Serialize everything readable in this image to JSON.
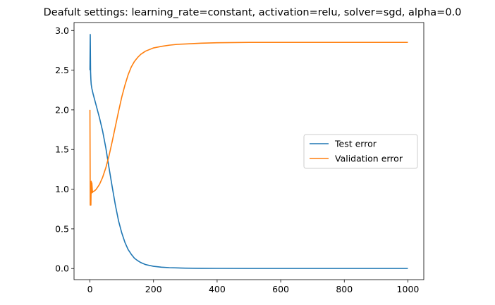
{
  "chart_data": {
    "type": "line",
    "title": "Deafult settings: learning_rate=constant, activation=relu, solver=sgd, alpha=0.0",
    "xlabel": "",
    "ylabel": "",
    "xlim": [
      -50,
      1050
    ],
    "ylim": [
      -0.14,
      3.1
    ],
    "xticks": [
      0,
      200,
      400,
      600,
      800,
      1000
    ],
    "yticks": [
      0.0,
      0.5,
      1.0,
      1.5,
      2.0,
      2.5,
      3.0
    ],
    "xtick_labels": [
      "0",
      "200",
      "400",
      "600",
      "800",
      "1000"
    ],
    "ytick_labels": [
      "0.0",
      "0.5",
      "1.0",
      "1.5",
      "2.0",
      "2.5",
      "3.0"
    ],
    "grid": false,
    "legend_position": "center-right",
    "series": [
      {
        "name": "Test error",
        "color": "#1f77b4",
        "x": [
          0,
          1,
          2,
          3,
          4,
          6,
          10,
          20,
          30,
          40,
          50,
          60,
          70,
          80,
          90,
          100,
          110,
          120,
          130,
          140,
          150,
          160,
          175,
          200,
          225,
          250,
          300,
          350,
          400,
          500,
          600,
          700,
          800,
          900,
          1000
        ],
        "y": [
          2.5,
          2.95,
          2.48,
          2.38,
          2.32,
          2.27,
          2.2,
          2.05,
          1.9,
          1.73,
          1.52,
          1.27,
          1.03,
          0.8,
          0.6,
          0.45,
          0.33,
          0.24,
          0.18,
          0.13,
          0.1,
          0.075,
          0.05,
          0.028,
          0.017,
          0.011,
          0.005,
          0.003,
          0.002,
          0.001,
          0.001,
          0.001,
          0.001,
          0.001,
          0.001
        ]
      },
      {
        "name": "Validation error",
        "color": "#ff7f0e",
        "x": [
          0,
          1,
          2,
          3,
          4,
          5,
          6,
          8,
          10,
          15,
          20,
          30,
          40,
          50,
          60,
          70,
          80,
          90,
          100,
          110,
          120,
          130,
          140,
          150,
          160,
          175,
          200,
          225,
          250,
          275,
          300,
          350,
          400,
          500,
          600,
          700,
          800,
          900,
          1000
        ],
        "y": [
          2.0,
          0.8,
          1.05,
          0.8,
          1.1,
          0.95,
          1.08,
          0.96,
          0.97,
          0.98,
          1.0,
          1.06,
          1.15,
          1.27,
          1.42,
          1.6,
          1.79,
          1.98,
          2.16,
          2.31,
          2.44,
          2.54,
          2.61,
          2.66,
          2.7,
          2.74,
          2.78,
          2.8,
          2.815,
          2.825,
          2.83,
          2.84,
          2.845,
          2.85,
          2.85,
          2.85,
          2.85,
          2.85,
          2.85
        ]
      }
    ]
  }
}
